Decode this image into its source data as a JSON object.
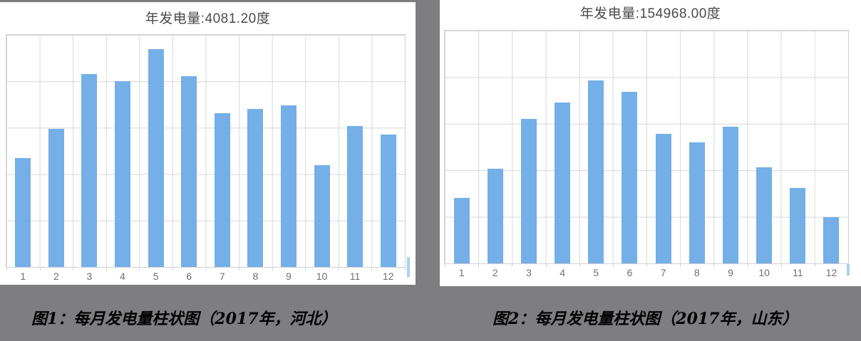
{
  "page": {
    "background_color": "#7E7E81",
    "panel_color": "#FFFFFF"
  },
  "colors": {
    "bar": "#74AFE8",
    "grid_line": "#D8D8D8",
    "plot_border": "#D2D2D2",
    "title_text": "#4A4A4A",
    "axis_label_text": "#6F6F6F",
    "x_tick": "#C3D8EB",
    "caption_text": "#000000"
  },
  "chart_data": [
    {
      "type": "bar",
      "title": "年发电量:4081.20度",
      "caption": "图1：每月发电量柱状图（2017年，河北）",
      "categories": [
        "1",
        "2",
        "3",
        "4",
        "5",
        "6",
        "7",
        "8",
        "9",
        "10",
        "11",
        "12"
      ],
      "values": [
        234,
        298,
        416,
        401,
        469,
        411,
        332,
        340,
        348,
        219,
        303,
        286
      ],
      "annual_total": 4081.2,
      "unit": "度",
      "xlabel": "",
      "ylabel": "",
      "ylim": [
        0,
        500
      ],
      "y_gridline_count": 5,
      "y_tick_labels_shown": false,
      "legend": "none",
      "grid": true,
      "bar_color": "#74AFE8",
      "note": "y-axis has no tick labels; monthly values estimated from bar heights against gridlines, annual total shown in title"
    },
    {
      "type": "bar",
      "title": "年发电量:154968.00度",
      "caption": "图2：每月发电量柱状图（2017年，山东）",
      "categories": [
        "1",
        "2",
        "3",
        "4",
        "5",
        "6",
        "7",
        "8",
        "9",
        "10",
        "11",
        "12"
      ],
      "values": [
        7000,
        10200,
        15550,
        17250,
        19650,
        18450,
        13900,
        13000,
        14650,
        10350,
        8100,
        4950
      ],
      "annual_total": 154968.0,
      "unit": "度",
      "xlabel": "",
      "ylabel": "",
      "ylim": [
        0,
        25000
      ],
      "y_gridline_count": 5,
      "y_tick_labels_shown": false,
      "legend": "none",
      "grid": true,
      "bar_color": "#74AFE8",
      "note": "y-axis has no tick labels; monthly values estimated from bar heights against gridlines, annual total shown in title"
    }
  ]
}
